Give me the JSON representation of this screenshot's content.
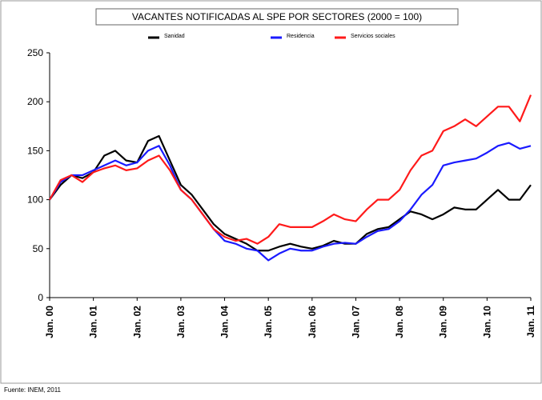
{
  "chart_data": {
    "type": "line",
    "title": "VACANTES NOTIFICADAS AL SPE POR SECTORES (2000 = 100)",
    "source": "Fuente: INEM, 2011",
    "categories": [
      "Jan. 00",
      null,
      null,
      null,
      "Jan. 01",
      null,
      null,
      null,
      "Jan. 02",
      null,
      null,
      null,
      "Jan. 03",
      null,
      null,
      null,
      "Jan. 04",
      null,
      null,
      null,
      "Jan. 05",
      null,
      null,
      null,
      "Jan. 06",
      null,
      null,
      null,
      "Jan. 07",
      null,
      null,
      null,
      "Jan. 08",
      null,
      null,
      null,
      "Jan. 09",
      null,
      null,
      null,
      "Jan. 10",
      null,
      null,
      null,
      "Jan. 11"
    ],
    "series": [
      {
        "name": "Sanidad",
        "color": "#000000",
        "values": [
          100,
          115,
          125,
          122,
          128,
          145,
          150,
          140,
          138,
          160,
          165,
          140,
          115,
          105,
          90,
          75,
          65,
          60,
          55,
          48,
          48,
          52,
          55,
          52,
          50,
          53,
          58,
          55,
          55,
          65,
          70,
          72,
          80,
          88,
          85,
          80,
          85,
          92,
          90,
          90,
          100,
          110,
          100,
          100,
          115
        ]
      },
      {
        "name": "Residencia",
        "color": "#1a1aff",
        "values": [
          100,
          118,
          125,
          125,
          130,
          135,
          140,
          135,
          138,
          150,
          155,
          135,
          110,
          100,
          85,
          70,
          58,
          55,
          50,
          48,
          38,
          45,
          50,
          48,
          48,
          52,
          55,
          56,
          55,
          62,
          68,
          70,
          78,
          90,
          105,
          115,
          135,
          138,
          140,
          142,
          148,
          155,
          158,
          152,
          155
        ]
      },
      {
        "name": "Servicios sociales",
        "color": "#ff1a1a",
        "values": [
          100,
          120,
          125,
          118,
          128,
          132,
          135,
          130,
          132,
          140,
          145,
          130,
          110,
          100,
          85,
          70,
          62,
          58,
          60,
          55,
          62,
          75,
          72,
          72,
          72,
          78,
          85,
          80,
          78,
          90,
          100,
          100,
          110,
          130,
          145,
          150,
          170,
          175,
          182,
          175,
          185,
          195,
          195,
          180,
          207
        ]
      }
    ],
    "ylim": [
      0,
      250
    ],
    "yticks": [
      0,
      50,
      100,
      150,
      200,
      250
    ],
    "grid": false
  }
}
